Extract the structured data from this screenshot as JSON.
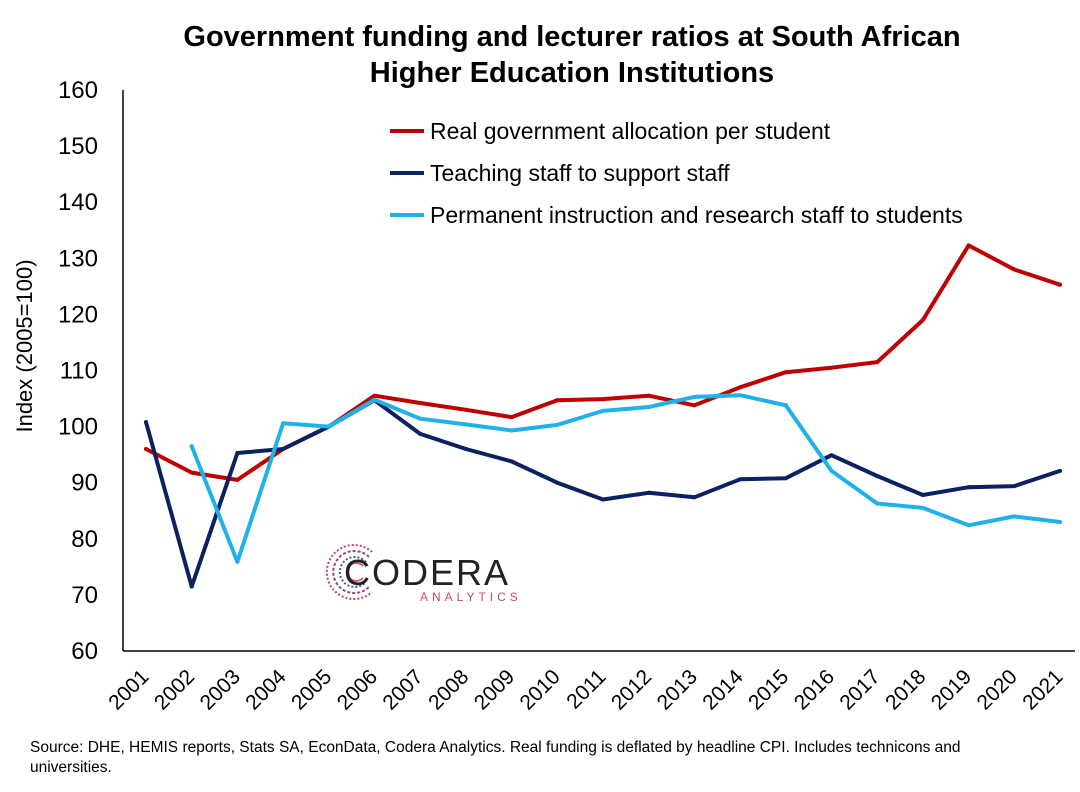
{
  "chart_data": {
    "type": "line",
    "title_lines": [
      "Government funding and lecturer ratios at South African",
      "Higher Education Institutions"
    ],
    "xlabel": "",
    "ylabel": "Index (2005=100)",
    "ylim": [
      60,
      160
    ],
    "yticks": [
      60,
      70,
      80,
      90,
      100,
      110,
      120,
      130,
      140,
      150,
      160
    ],
    "categories": [
      "2001",
      "2002",
      "2003",
      "2004",
      "2005",
      "2006",
      "2007",
      "2008",
      "2009",
      "2010",
      "2011",
      "2012",
      "2013",
      "2014",
      "2015",
      "2016",
      "2017",
      "2018",
      "2019",
      "2020",
      "2021"
    ],
    "legend_position": "top-right",
    "grid": false,
    "series": [
      {
        "name": "Real government allocation per student",
        "color": "#c00000",
        "values": [
          96,
          91.8,
          90.5,
          96,
          100,
          105.5,
          104.2,
          103,
          101.7,
          104.7,
          104.9,
          105.5,
          103.8,
          107,
          109.7,
          110.5,
          111.5,
          119,
          132.3,
          128,
          125.3
        ]
      },
      {
        "name": "Teaching staff to support staff",
        "color": "#0b2161",
        "values": [
          100.8,
          71.5,
          95.3,
          96,
          100,
          104.7,
          98.7,
          96,
          93.8,
          90,
          87,
          88.2,
          87.4,
          90.6,
          90.8,
          94.9,
          91.2,
          87.8,
          89.2,
          89.4,
          92.1
        ]
      },
      {
        "name": "Permanent instruction and research staff to students",
        "color": "#1fb1ea",
        "values": [
          null,
          96.5,
          75.9,
          100.6,
          100,
          104.8,
          101.4,
          100.4,
          99.3,
          100.3,
          102.8,
          103.5,
          105.3,
          105.6,
          103.8,
          92.1,
          86.3,
          85.5,
          82.4,
          84,
          83
        ]
      }
    ]
  },
  "logo": {
    "word": "CODERA",
    "sub": "ANALYTICS"
  },
  "source_note": "Source: DHE, HEMIS reports, Stats SA, EconData, Codera Analytics. Real funding is deflated by headline CPI. Includes technicons and universities."
}
